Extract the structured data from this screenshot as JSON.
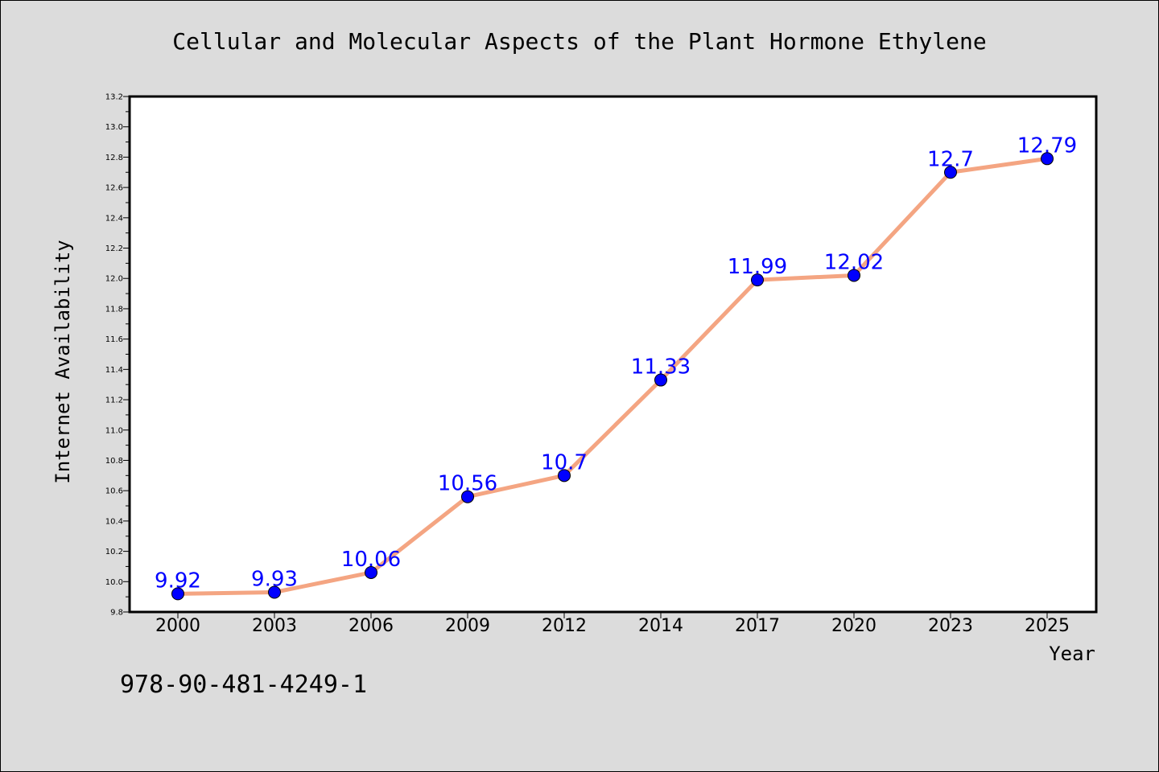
{
  "chart_data": {
    "type": "line",
    "title": "Cellular and Molecular Aspects of the Plant Hormone Ethylene",
    "xlabel": "Year",
    "ylabel": "Internet Availability",
    "categories": [
      "2000",
      "2003",
      "2006",
      "2009",
      "2012",
      "2014",
      "2017",
      "2020",
      "2023",
      "2025"
    ],
    "values": [
      9.92,
      9.93,
      10.06,
      10.56,
      10.7,
      11.33,
      11.99,
      12.02,
      12.7,
      12.79
    ],
    "data_labels": [
      "9.92",
      "9.93",
      "10.06",
      "10.56",
      "10.7",
      "11.33",
      "11.99",
      "12.02",
      "12.7",
      "12.79"
    ],
    "ylim": [
      9.8,
      13.2
    ],
    "yticks": [
      "9.8",
      "10.0",
      "10.2",
      "10.4",
      "10.6",
      "10.8",
      "11.0",
      "11.2",
      "11.4",
      "11.6",
      "11.8",
      "12.0",
      "12.2",
      "12.4",
      "12.6",
      "12.8",
      "13.0",
      "13.2"
    ],
    "grid": false,
    "line_color": "#f4a582",
    "marker_color": "#0000ff",
    "label_color": "#0000ff"
  },
  "footer_text": "978-90-481-4249-1"
}
